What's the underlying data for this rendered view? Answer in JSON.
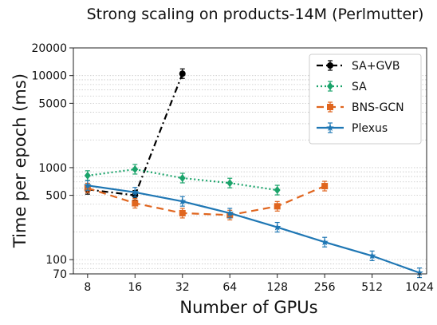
{
  "chart_data": {
    "type": "line",
    "title": "Strong scaling on products-14M (Perlmutter)",
    "xlabel": "Number of GPUs",
    "ylabel": "Time per epoch (ms)",
    "x_scale": "log2",
    "y_scale": "log",
    "x": [
      8,
      16,
      32,
      64,
      128,
      256,
      512,
      1024
    ],
    "x_tick_labels": [
      "8",
      "16",
      "32",
      "64",
      "128",
      "256",
      "512",
      "1024"
    ],
    "ylim": [
      70,
      20000
    ],
    "y_ticks": [
      70,
      100,
      500,
      1000,
      5000,
      10000,
      20000
    ],
    "y_tick_labels": [
      "70",
      "100",
      "500",
      "1000",
      "5000",
      "10000",
      "20000"
    ],
    "grid": "horizontal",
    "legend_position": "top-right",
    "series": [
      {
        "name": "SA+GVB",
        "color": "#000000",
        "dash": "8,4,2,4",
        "marker": "circle",
        "x": [
          8,
          16,
          32
        ],
        "values": [
          580,
          500,
          10500
        ]
      },
      {
        "name": "SA",
        "color": "#1aa36a",
        "dash": "2,3",
        "marker": "diamond",
        "x": [
          8,
          16,
          32,
          64,
          128
        ],
        "values": [
          820,
          960,
          770,
          680,
          570
        ]
      },
      {
        "name": "BNS-GCN",
        "color": "#e0651e",
        "dash": "9,6",
        "marker": "square",
        "x": [
          8,
          16,
          32,
          64,
          128,
          256
        ],
        "values": [
          600,
          410,
          320,
          305,
          380,
          630
        ]
      },
      {
        "name": "Plexus",
        "color": "#1f77b4",
        "dash": "",
        "marker": "star",
        "x": [
          8,
          16,
          32,
          64,
          128,
          256,
          512,
          1024
        ],
        "values": [
          640,
          540,
          430,
          320,
          225,
          155,
          110,
          72
        ]
      }
    ]
  }
}
